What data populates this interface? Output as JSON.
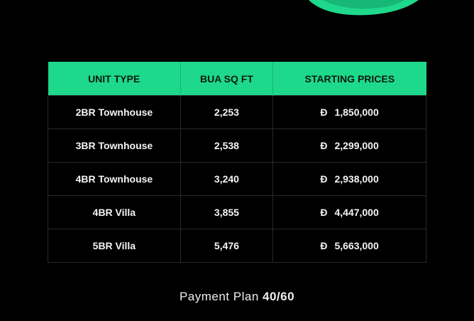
{
  "colors": {
    "accent": "#1ed98b",
    "background": "#000000"
  },
  "table": {
    "headers": [
      "UNIT TYPE",
      "BUA SQ FT",
      "STARTING PRICES"
    ],
    "currency_symbol": "Đ",
    "rows": [
      {
        "unit": "2BR Townhouse",
        "bua": "2,253",
        "price": "1,850,000"
      },
      {
        "unit": "3BR Townhouse",
        "bua": "2,538",
        "price": "2,299,000"
      },
      {
        "unit": "4BR Townhouse",
        "bua": "3,240",
        "price": "2,938,000"
      },
      {
        "unit": "4BR Villa",
        "bua": "3,855",
        "price": "4,447,000"
      },
      {
        "unit": "5BR Villa",
        "bua": "5,476",
        "price": "5,663,000"
      }
    ]
  },
  "payment_plan": {
    "label": "Payment Plan",
    "value": "40/60"
  }
}
